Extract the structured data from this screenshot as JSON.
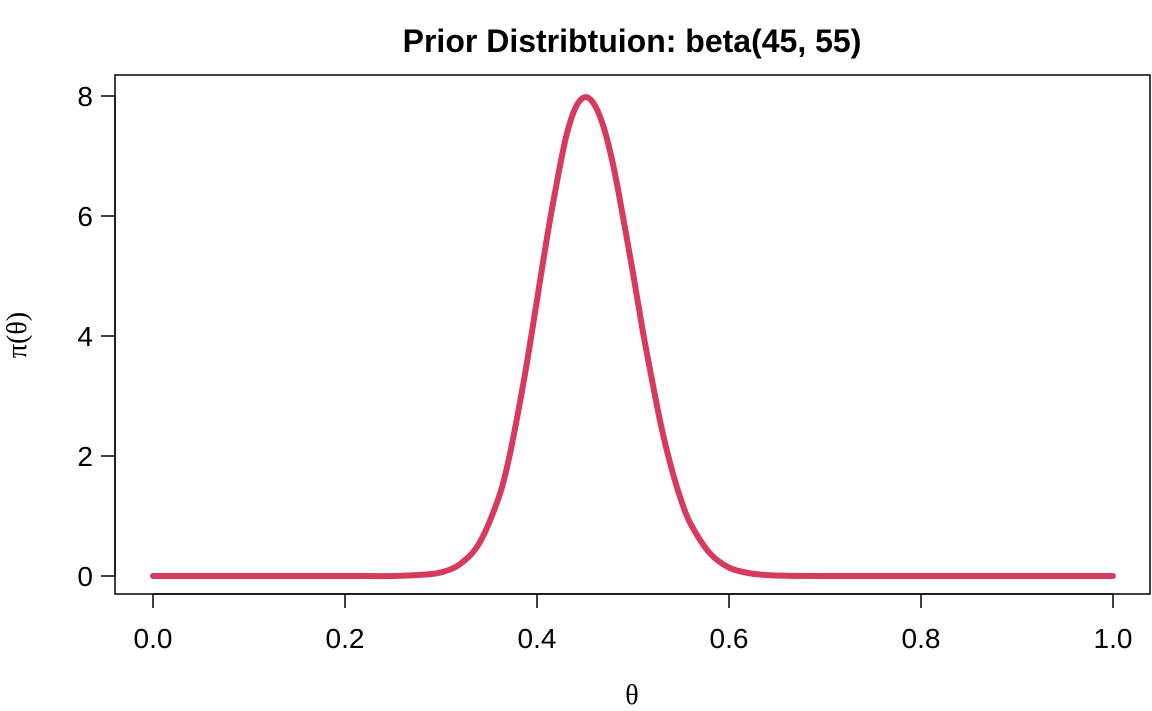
{
  "chart_data": {
    "type": "line",
    "title": "Prior Distribtuion: beta(45, 55)",
    "xlabel": "θ",
    "ylabel": "π(θ)",
    "xlim": [
      0,
      1
    ],
    "ylim": [
      0,
      8
    ],
    "x_ticks": [
      "0.0",
      "0.2",
      "0.4",
      "0.6",
      "0.8",
      "1.0"
    ],
    "y_ticks": [
      "0",
      "2",
      "4",
      "6",
      "8"
    ],
    "grid": false,
    "legend": "none",
    "series": [
      {
        "color": "#d63a5e",
        "x": [
          0.0,
          0.05,
          0.1,
          0.15,
          0.2,
          0.25,
          0.28,
          0.3,
          0.32,
          0.34,
          0.36,
          0.37,
          0.38,
          0.39,
          0.4,
          0.41,
          0.42,
          0.43,
          0.44,
          0.45,
          0.46,
          0.47,
          0.48,
          0.49,
          0.5,
          0.51,
          0.52,
          0.53,
          0.54,
          0.55,
          0.56,
          0.58,
          0.6,
          0.62,
          0.64,
          0.66,
          0.7,
          0.8,
          0.9,
          1.0
        ],
        "y": [
          0.0,
          0.0,
          0.0,
          0.0,
          0.0,
          0.0,
          0.02,
          0.06,
          0.2,
          0.55,
          1.3,
          1.9,
          2.7,
          3.6,
          4.6,
          5.6,
          6.5,
          7.3,
          7.8,
          7.98,
          7.85,
          7.45,
          6.8,
          5.95,
          5.05,
          4.1,
          3.25,
          2.45,
          1.8,
          1.27,
          0.87,
          0.38,
          0.14,
          0.05,
          0.015,
          0.004,
          0.0,
          0.0,
          0.0,
          0.0
        ]
      }
    ]
  }
}
